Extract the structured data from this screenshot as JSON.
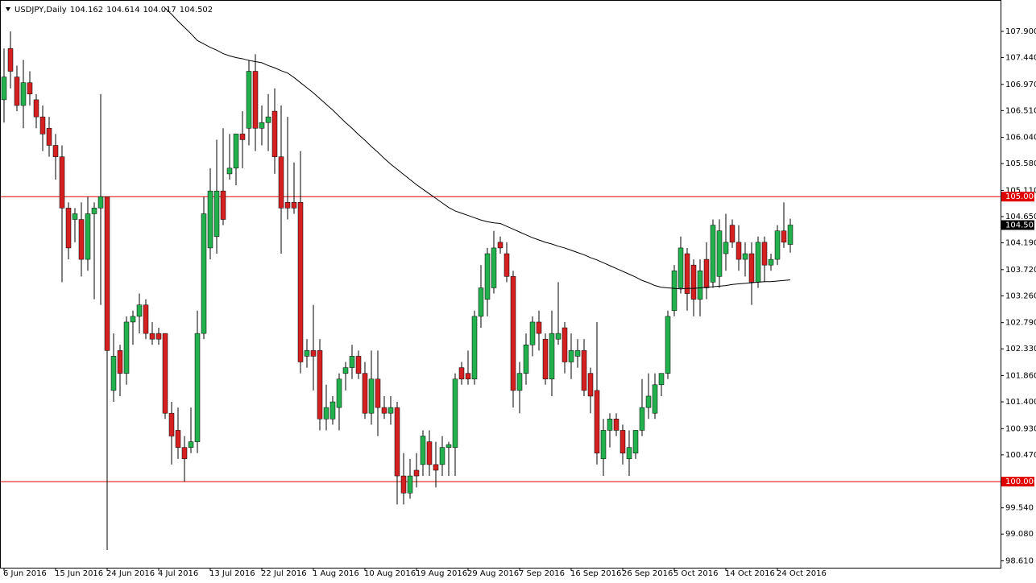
{
  "chart_data": {
    "type": "candlestick",
    "title": "USDJPY,Daily",
    "categories": [
      "6 Jun 2016",
      null,
      null,
      null,
      null,
      null,
      null,
      null,
      "15 Jun 2016",
      null,
      null,
      null,
      null,
      null,
      null,
      null,
      "24 Jun 2016",
      null,
      null,
      null,
      null,
      null,
      null,
      null,
      "4 Jul 2016",
      null,
      null,
      null,
      null,
      null,
      null,
      null,
      "13 Jul 2016",
      null,
      null,
      null,
      null,
      null,
      null,
      null,
      "22 Jul 2016",
      null,
      null,
      null,
      null,
      null,
      null,
      null,
      "1 Aug 2016",
      null,
      null,
      null,
      null,
      null,
      null,
      null,
      "10 Aug 2016",
      null,
      null,
      null,
      null,
      null,
      null,
      null,
      "19 Aug 2016",
      null,
      null,
      null,
      null,
      null,
      null,
      null,
      "29 Aug 2016",
      null,
      null,
      null,
      null,
      null,
      null,
      null,
      "7 Sep 2016",
      null,
      null,
      null,
      null,
      null,
      null,
      null,
      "16 Sep 2016",
      null,
      null,
      null,
      null,
      null,
      null,
      null,
      "26 Sep 2016",
      null,
      null,
      null,
      null,
      null,
      null,
      null,
      "5 Oct 2016",
      null,
      null,
      null,
      null,
      null,
      null,
      null,
      "14 Oct 2016",
      null,
      null,
      null,
      null,
      null,
      null,
      null,
      "24 Oct 2016",
      null,
      null
    ],
    "open": [
      106.7,
      107.6,
      107.1,
      106.6,
      107.0,
      106.7,
      106.4,
      106.2,
      105.9,
      105.7,
      104.8,
      104.6,
      104.6,
      103.9,
      104.7,
      104.8,
      105.0,
      101.6,
      102.3,
      101.9,
      102.8,
      102.9,
      103.1,
      102.6,
      102.6,
      102.6,
      101.2,
      100.9,
      100.6,
      100.6,
      100.7,
      102.6,
      104.1,
      104.3,
      105.1,
      105.4,
      105.5,
      106.1,
      106.2,
      107.2,
      106.2,
      106.3,
      106.5,
      105.7,
      104.9,
      104.9,
      104.9,
      102.2,
      102.3,
      102.3,
      101.1,
      101.1,
      101.3,
      101.9,
      102.0,
      102.2,
      101.9,
      101.2,
      101.8,
      101.3,
      101.2,
      101.3,
      100.1,
      99.8,
      100.2,
      100.3,
      100.7,
      100.3,
      100.3,
      100.6,
      100.6,
      102.0,
      101.9,
      101.8,
      102.9,
      103.2,
      103.4,
      104.2,
      104.0,
      103.6,
      101.6,
      101.9,
      102.4,
      102.8,
      102.5,
      101.8,
      102.5,
      102.7,
      102.1,
      102.2,
      102.3,
      101.9,
      101.6,
      100.4,
      100.9,
      101.1,
      100.9,
      100.4,
      100.5,
      100.9,
      101.3,
      101.2,
      101.7,
      101.9,
      103.0,
      103.4,
      104.0,
      103.8,
      103.2,
      103.9,
      103.5,
      103.6,
      104.0,
      104.5,
      104.2,
      103.9,
      104.0,
      103.5,
      104.2,
      103.8,
      103.9,
      104.4,
      104.162
    ],
    "high": [
      107.6,
      107.9,
      107.3,
      107.4,
      107.2,
      106.8,
      106.6,
      106.4,
      106.1,
      105.9,
      104.9,
      104.8,
      104.9,
      105.0,
      104.9,
      106.8,
      105.0,
      102.6,
      102.4,
      102.9,
      103.0,
      103.3,
      103.2,
      102.8,
      102.7,
      102.6,
      101.4,
      101.3,
      100.8,
      101.3,
      103.0,
      105.0,
      105.5,
      106.0,
      106.2,
      106.1,
      106.1,
      106.5,
      107.4,
      107.5,
      106.6,
      106.8,
      106.9,
      106.6,
      106.4,
      105.6,
      105.8,
      102.5,
      103.1,
      102.5,
      101.7,
      101.5,
      101.9,
      102.1,
      102.4,
      102.3,
      102.1,
      102.3,
      102.3,
      101.5,
      101.5,
      101.4,
      100.5,
      100.4,
      100.5,
      100.9,
      100.9,
      100.7,
      100.8,
      100.7,
      101.9,
      102.1,
      102.3,
      103.0,
      103.8,
      104.1,
      104.4,
      104.3,
      104.2,
      103.7,
      102.1,
      102.6,
      102.9,
      103.0,
      102.6,
      103.0,
      103.5,
      102.8,
      102.6,
      102.5,
      102.5,
      102.0,
      102.8,
      101.1,
      101.2,
      101.2,
      101.0,
      100.9,
      100.9,
      101.8,
      101.9,
      101.9,
      101.9,
      103.0,
      103.8,
      104.3,
      104.1,
      103.9,
      103.9,
      104.2,
      104.6,
      104.6,
      104.7,
      104.6,
      104.5,
      104.2,
      104.2,
      104.3,
      104.3,
      104.0,
      104.5,
      104.9,
      104.614
    ],
    "low": [
      106.3,
      106.9,
      106.5,
      106.2,
      106.6,
      106.2,
      105.8,
      105.7,
      105.3,
      103.5,
      103.9,
      104.2,
      103.6,
      103.7,
      103.2,
      103.1,
      98.8,
      101.4,
      101.5,
      101.7,
      102.4,
      102.6,
      102.5,
      102.4,
      102.4,
      101.1,
      100.3,
      100.4,
      100.0,
      100.5,
      100.5,
      102.5,
      103.9,
      104.0,
      104.5,
      105.3,
      105.2,
      105.5,
      105.9,
      105.8,
      105.9,
      105.8,
      105.4,
      104.0,
      104.6,
      104.7,
      101.9,
      102.0,
      101.6,
      100.9,
      100.9,
      101.0,
      100.9,
      101.6,
      101.8,
      101.8,
      101.1,
      101.0,
      100.8,
      101.1,
      101.0,
      99.6,
      99.6,
      99.7,
      99.9,
      100.1,
      100.1,
      99.9,
      100.1,
      100.1,
      100.1,
      101.7,
      101.7,
      101.7,
      102.7,
      102.9,
      103.3,
      104.0,
      103.5,
      101.3,
      101.2,
      101.7,
      102.2,
      102.3,
      101.7,
      101.5,
      102.4,
      101.9,
      101.8,
      102.0,
      101.5,
      101.2,
      100.3,
      100.1,
      100.6,
      100.8,
      100.3,
      100.1,
      100.4,
      100.8,
      101.1,
      101.1,
      101.5,
      101.8,
      102.9,
      103.3,
      103.0,
      102.9,
      102.9,
      103.2,
      103.4,
      103.4,
      103.7,
      104.1,
      103.7,
      103.6,
      103.1,
      103.4,
      103.5,
      103.7,
      103.8,
      104.1,
      104.017
    ],
    "close": [
      107.1,
      107.2,
      106.6,
      107.0,
      106.8,
      106.4,
      106.1,
      105.9,
      105.7,
      104.8,
      104.1,
      104.7,
      103.9,
      104.7,
      104.8,
      105.0,
      102.3,
      102.2,
      101.9,
      102.8,
      102.9,
      103.1,
      102.6,
      102.5,
      102.5,
      101.2,
      100.8,
      100.6,
      100.4,
      100.7,
      102.6,
      104.7,
      105.1,
      105.1,
      104.6,
      105.5,
      106.1,
      106.0,
      107.2,
      106.2,
      106.3,
      106.4,
      105.7,
      104.8,
      104.8,
      104.8,
      102.1,
      102.3,
      102.2,
      101.1,
      101.3,
      101.4,
      101.8,
      102.0,
      102.2,
      101.9,
      101.2,
      101.8,
      101.3,
      101.2,
      101.3,
      100.1,
      99.8,
      100.1,
      100.1,
      100.8,
      100.3,
      100.2,
      100.6,
      100.65,
      101.8,
      101.8,
      101.8,
      102.9,
      103.4,
      104.0,
      104.1,
      104.1,
      103.6,
      101.6,
      101.9,
      102.4,
      102.8,
      102.6,
      101.8,
      102.6,
      102.6,
      102.1,
      102.3,
      102.3,
      101.6,
      101.5,
      100.5,
      100.9,
      101.1,
      100.9,
      100.5,
      100.6,
      100.9,
      101.3,
      101.5,
      101.7,
      101.9,
      102.9,
      103.7,
      104.1,
      103.3,
      103.2,
      103.7,
      103.4,
      104.5,
      104.4,
      104.2,
      104.2,
      103.9,
      104.0,
      103.5,
      104.2,
      103.8,
      103.9,
      104.4,
      104.2,
      104.502
    ],
    "up_color": "#22b14c",
    "down_color": "#d42020",
    "wick_color": "#000000",
    "ma": {
      "color": "#000000",
      "values": [
        null,
        null,
        null,
        null,
        null,
        null,
        null,
        null,
        null,
        null,
        null,
        null,
        null,
        null,
        null,
        null,
        null,
        null,
        null,
        null,
        null,
        null,
        null,
        null,
        null,
        108.31,
        108.2,
        108.08,
        107.97,
        107.86,
        107.74,
        107.68,
        107.62,
        107.57,
        107.51,
        107.47,
        107.44,
        107.42,
        107.39,
        107.37,
        107.35,
        107.3,
        107.26,
        107.21,
        107.17,
        107.09,
        107.0,
        106.91,
        106.82,
        106.72,
        106.62,
        106.52,
        106.41,
        106.3,
        106.2,
        106.09,
        105.99,
        105.88,
        105.78,
        105.67,
        105.57,
        105.48,
        105.39,
        105.3,
        105.21,
        105.13,
        105.05,
        104.97,
        104.89,
        104.81,
        104.75,
        104.71,
        104.67,
        104.63,
        104.59,
        104.56,
        104.54,
        104.53,
        104.48,
        104.43,
        104.38,
        104.33,
        104.28,
        104.24,
        104.2,
        104.17,
        104.13,
        104.1,
        104.06,
        104.02,
        103.98,
        103.93,
        103.89,
        103.84,
        103.79,
        103.74,
        103.69,
        103.64,
        103.59,
        103.53,
        103.49,
        103.44,
        103.41,
        103.4,
        103.39,
        103.38,
        103.39,
        103.39,
        103.4,
        103.41,
        103.42,
        103.43,
        103.44,
        103.46,
        103.47,
        103.48,
        103.49,
        103.5,
        103.51,
        103.51,
        103.52,
        103.53,
        103.54
      ]
    },
    "hlines": [
      {
        "value": 105,
        "label": "105.000",
        "color": "#e00000"
      },
      {
        "value": 100,
        "label": "100.000",
        "color": "#e00000"
      }
    ],
    "ylim": [
      98.49,
      108.38
    ],
    "yticks": [
      {
        "value": 107.9,
        "label": "107.900"
      },
      {
        "value": 107.44,
        "label": "107.440"
      },
      {
        "value": 106.97,
        "label": "106.970"
      },
      {
        "value": 106.51,
        "label": "106.510"
      },
      {
        "value": 106.04,
        "label": "106.040"
      },
      {
        "value": 105.58,
        "label": "105.580"
      },
      {
        "value": 105.11,
        "label": "105.110"
      },
      {
        "value": 104.65,
        "label": "104.650"
      },
      {
        "value": 104.19,
        "label": "104.190"
      },
      {
        "value": 103.72,
        "label": "103.720"
      },
      {
        "value": 103.26,
        "label": "103.260"
      },
      {
        "value": 102.79,
        "label": "102.790"
      },
      {
        "value": 102.33,
        "label": "102.330"
      },
      {
        "value": 101.86,
        "label": "101.860"
      },
      {
        "value": 101.4,
        "label": "101.400"
      },
      {
        "value": 100.93,
        "label": "100.930"
      },
      {
        "value": 100.47,
        "label": "100.470"
      },
      {
        "value": 99.54,
        "label": "99.540"
      },
      {
        "value": 99.08,
        "label": "99.080"
      },
      {
        "value": 98.61,
        "label": "98.610"
      }
    ],
    "grid": false
  }
}
